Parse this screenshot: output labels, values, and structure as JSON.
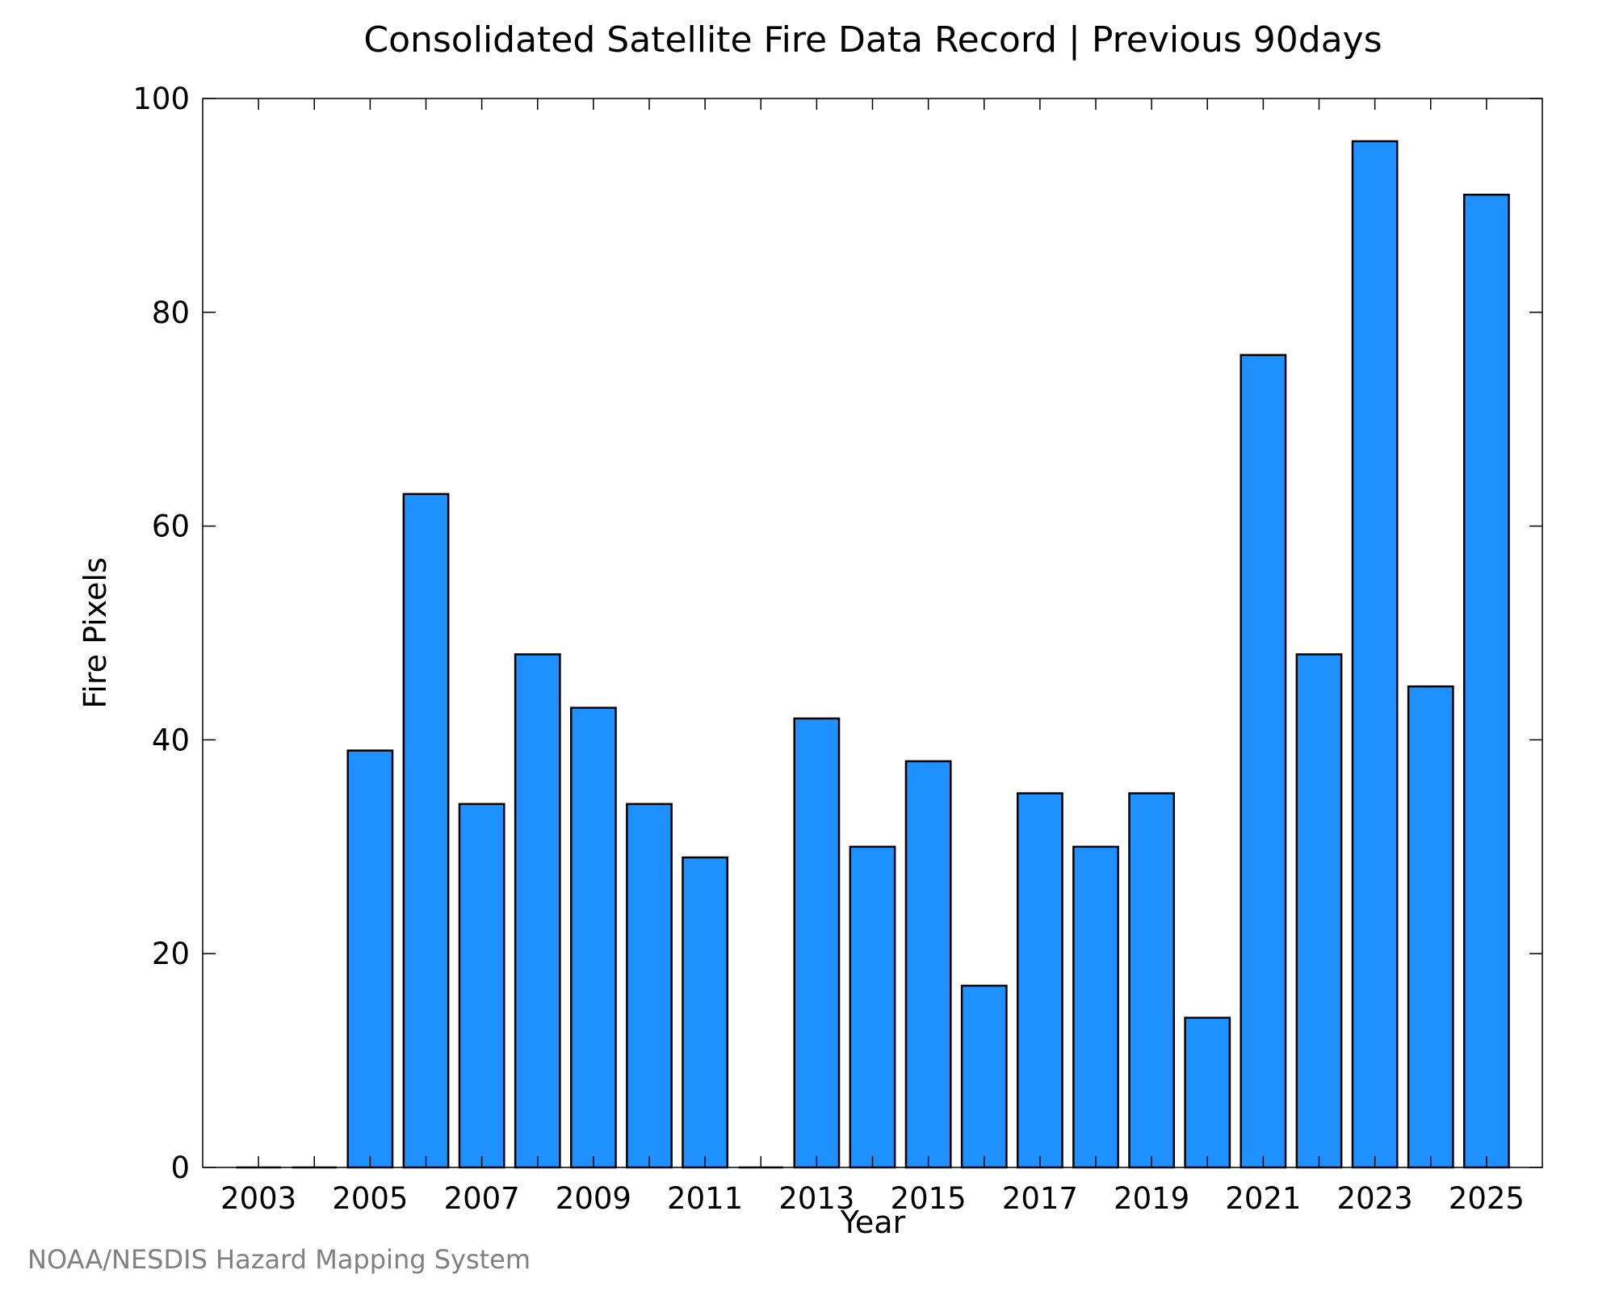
{
  "chart_data": {
    "type": "bar",
    "title": "Consolidated Satellite Fire Data Record | Previous 90days",
    "xlabel": "Year",
    "ylabel": "Fire Pixels",
    "categories": [
      "2003",
      "2004",
      "2005",
      "2006",
      "2007",
      "2008",
      "2009",
      "2010",
      "2011",
      "2012",
      "2013",
      "2014",
      "2015",
      "2016",
      "2017",
      "2018",
      "2019",
      "2020",
      "2021",
      "2022",
      "2023",
      "2024",
      "2025"
    ],
    "values": [
      0,
      0,
      39,
      63,
      34,
      48,
      43,
      34,
      29,
      0,
      42,
      30,
      38,
      17,
      35,
      30,
      35,
      14,
      76,
      48,
      96,
      45,
      91
    ],
    "xtick_labels": [
      "2003",
      "2005",
      "2007",
      "2009",
      "2011",
      "2013",
      "2015",
      "2017",
      "2019",
      "2021",
      "2023",
      "2025"
    ],
    "yticks": [
      0,
      20,
      40,
      60,
      80,
      100
    ],
    "ylim": [
      0,
      100
    ],
    "grid": false,
    "bar_color": "#1E90FF",
    "bar_edge_color": "#000000"
  },
  "footer": {
    "credit": "NOAA/NESDIS Hazard Mapping System"
  }
}
